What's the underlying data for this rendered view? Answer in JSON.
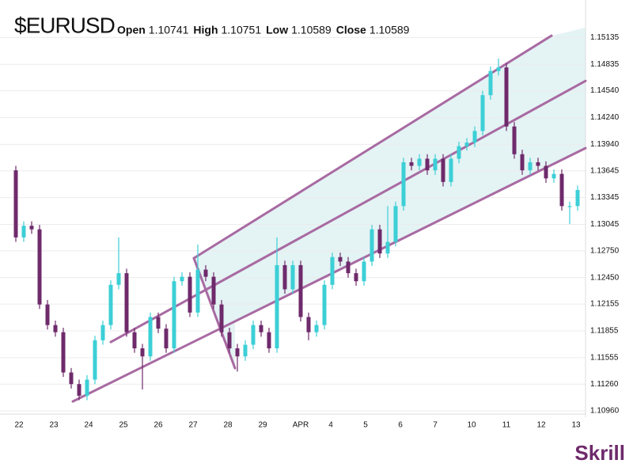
{
  "chart_data": {
    "type": "candlestick",
    "title": "$EURUSD",
    "ohlc_header": [
      {
        "label": "Open",
        "value": 1.10741
      },
      {
        "label": "High",
        "value": 1.10751
      },
      {
        "label": "Low",
        "value": 1.10589
      },
      {
        "label": "Close",
        "value": 1.10589
      }
    ],
    "brand": "Skrill",
    "up_color": "#3ccfd6",
    "down_color": "#6e2a6b",
    "channel_color": "#a86aa2",
    "channel_fill": "#e4f3f4",
    "grid": true,
    "xlim": [
      -0.5,
      72
    ],
    "ylim": [
      1.1089,
      1.152
    ],
    "xticks": [
      {
        "value": 0.4,
        "label": "22"
      },
      {
        "value": 4.8,
        "label": "23"
      },
      {
        "value": 9.2,
        "label": "24"
      },
      {
        "value": 13.6,
        "label": "25"
      },
      {
        "value": 18,
        "label": "26"
      },
      {
        "value": 22.4,
        "label": "27"
      },
      {
        "value": 26.8,
        "label": "28"
      },
      {
        "value": 31.2,
        "label": "29"
      },
      {
        "value": 36,
        "label": "APR"
      },
      {
        "value": 39.8,
        "label": "4"
      },
      {
        "value": 44.2,
        "label": "5"
      },
      {
        "value": 48.6,
        "label": "6"
      },
      {
        "value": 53,
        "label": "7"
      },
      {
        "value": 57.6,
        "label": "10"
      },
      {
        "value": 62,
        "label": "11"
      },
      {
        "value": 66.4,
        "label": "12"
      },
      {
        "value": 70.8,
        "label": "13"
      }
    ],
    "yticks": [
      {
        "value": 1.1096,
        "label": "1.10960"
      },
      {
        "value": 1.1126,
        "label": "1.11260"
      },
      {
        "value": 1.11555,
        "label": "1.11555"
      },
      {
        "value": 1.11855,
        "label": "1.11855"
      },
      {
        "value": 1.12155,
        "label": "1.12155"
      },
      {
        "value": 1.1245,
        "label": "1.12450"
      },
      {
        "value": 1.1275,
        "label": "1.12750"
      },
      {
        "value": 1.13045,
        "label": "1.13045"
      },
      {
        "value": 1.13345,
        "label": "1.13345"
      },
      {
        "value": 1.13645,
        "label": "1.13645"
      },
      {
        "value": 1.1394,
        "label": "1.13940"
      },
      {
        "value": 1.1424,
        "label": "1.14240"
      },
      {
        "value": 1.1454,
        "label": "1.14540"
      },
      {
        "value": 1.14835,
        "label": "1.14835"
      },
      {
        "value": 1.15135,
        "label": "1.15135"
      }
    ],
    "open": [
      1.1365,
      1.129,
      1.1303,
      1.1299,
      1.1215,
      1.1192,
      1.1184,
      1.1139,
      1.1126,
      1.1113,
      1.1131,
      1.1175,
      1.1192,
      1.1237,
      1.125,
      1.1184,
      1.1166,
      1.1157,
      1.1201,
      1.1188,
      1.1166,
      1.1241,
      1.1246,
      1.1206,
      1.1254,
      1.1246,
      1.1215,
      1.1184,
      1.1166,
      1.1157,
      1.117,
      1.1192,
      1.1184,
      1.1166,
      1.1259,
      1.1232,
      1.1259,
      1.1201,
      1.1184,
      1.1192,
      1.1237,
      1.1268,
      1.1263,
      1.125,
      1.1241,
      1.1263,
      1.1299,
      1.1272,
      1.1285,
      1.1325,
      1.1374,
      1.137,
      1.1378,
      1.1365,
      1.1378,
      1.1352,
      1.1378,
      1.1392,
      1.1396,
      1.1409,
      1.1449,
      1.1476,
      1.148,
      1.1414,
      1.1383,
      1.1365,
      1.1374,
      1.137,
      1.1356,
      1.1361,
      1.1325,
      1.1325
    ],
    "high": [
      1.137,
      1.1308,
      1.1308,
      1.1304,
      1.122,
      1.1197,
      1.1189,
      1.1144,
      1.1131,
      1.1136,
      1.118,
      1.1197,
      1.1242,
      1.129,
      1.1255,
      1.1189,
      1.1171,
      1.1206,
      1.1206,
      1.1193,
      1.1246,
      1.1251,
      1.1251,
      1.1282,
      1.1259,
      1.1251,
      1.122,
      1.1189,
      1.1171,
      1.1175,
      1.1197,
      1.1197,
      1.1189,
      1.129,
      1.1264,
      1.1264,
      1.1264,
      1.1206,
      1.1197,
      1.1242,
      1.1273,
      1.1273,
      1.1268,
      1.1255,
      1.1268,
      1.1304,
      1.1304,
      1.1325,
      1.133,
      1.1379,
      1.1379,
      1.1383,
      1.1383,
      1.1383,
      1.1383,
      1.1383,
      1.1397,
      1.1401,
      1.1414,
      1.1454,
      1.1481,
      1.149,
      1.1485,
      1.1419,
      1.1388,
      1.1379,
      1.1379,
      1.1375,
      1.1366,
      1.1366,
      1.133,
      1.1348
    ],
    "low": [
      1.1285,
      1.1285,
      1.1294,
      1.121,
      1.1187,
      1.1179,
      1.1134,
      1.1121,
      1.1108,
      1.1108,
      1.1126,
      1.117,
      1.1187,
      1.1232,
      1.1179,
      1.1161,
      1.112,
      1.1152,
      1.1183,
      1.1161,
      1.1161,
      1.1236,
      1.1201,
      1.1201,
      1.1241,
      1.121,
      1.1179,
      1.1161,
      1.114,
      1.1152,
      1.1165,
      1.1179,
      1.1161,
      1.1161,
      1.1227,
      1.1227,
      1.1196,
      1.1175,
      1.1179,
      1.1187,
      1.1232,
      1.1258,
      1.1245,
      1.1236,
      1.1236,
      1.1258,
      1.1267,
      1.1267,
      1.128,
      1.132,
      1.1365,
      1.1365,
      1.136,
      1.136,
      1.1347,
      1.1347,
      1.1373,
      1.1387,
      1.1391,
      1.1404,
      1.1444,
      1.1471,
      1.1409,
      1.1378,
      1.136,
      1.136,
      1.1365,
      1.1351,
      1.1351,
      1.132,
      1.1305,
      1.132
    ],
    "close": [
      1.129,
      1.1303,
      1.1299,
      1.1215,
      1.1192,
      1.1184,
      1.1139,
      1.1126,
      1.1113,
      1.1131,
      1.1175,
      1.1192,
      1.1237,
      1.125,
      1.1184,
      1.1166,
      1.1157,
      1.1201,
      1.1188,
      1.1166,
      1.1241,
      1.1246,
      1.1206,
      1.1254,
      1.1246,
      1.1215,
      1.1184,
      1.1166,
      1.1157,
      1.117,
      1.1192,
      1.1184,
      1.1166,
      1.1259,
      1.1232,
      1.1259,
      1.1201,
      1.1184,
      1.1192,
      1.1237,
      1.1268,
      1.1263,
      1.125,
      1.1241,
      1.1263,
      1.1299,
      1.1272,
      1.1285,
      1.1325,
      1.1374,
      1.137,
      1.1378,
      1.1365,
      1.1378,
      1.1352,
      1.1378,
      1.1392,
      1.1396,
      1.1409,
      1.1449,
      1.1476,
      1.148,
      1.1414,
      1.1383,
      1.1365,
      1.1374,
      1.137,
      1.1356,
      1.1361,
      1.1325,
      1.1325,
      1.1343
    ],
    "channel": {
      "upper": {
        "x": [
          22.5,
          67.7
        ],
        "y": [
          1.12668,
          1.15155
        ]
      },
      "middle": {
        "x": [
          12,
          72
        ],
        "y": [
          1.1173,
          1.1465
        ]
      },
      "lower": {
        "x": [
          7.2,
          72
        ],
        "y": [
          1.11066,
          1.13898
        ]
      },
      "connector": {
        "x": [
          22.5,
          27.7
        ],
        "y": [
          1.12668,
          1.11438
        ]
      }
    }
  }
}
